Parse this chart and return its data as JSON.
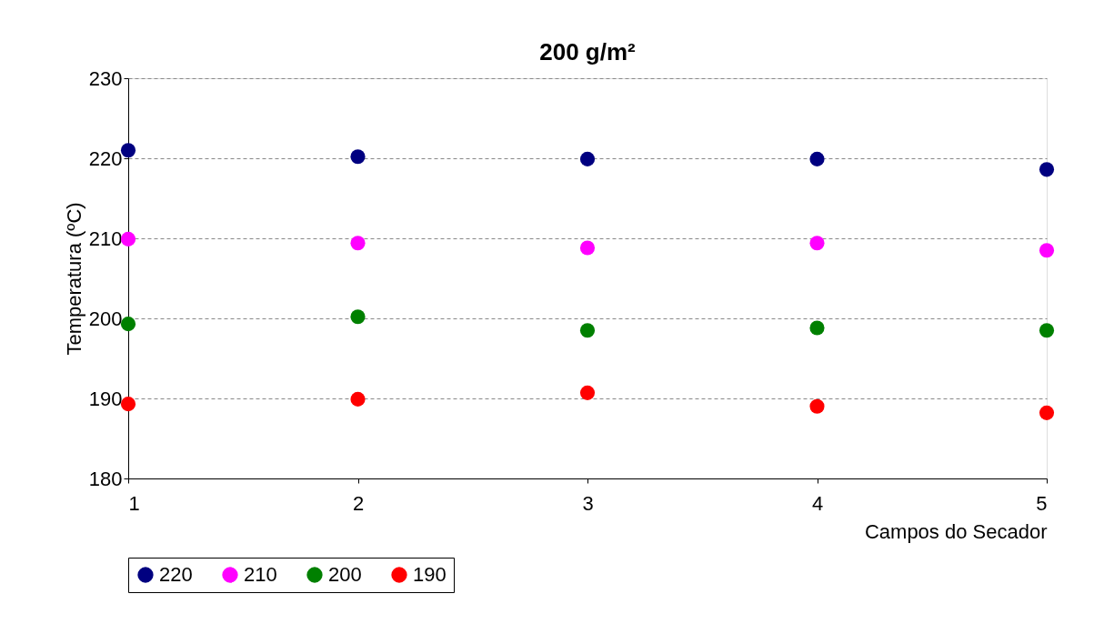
{
  "chart_data": {
    "type": "scatter",
    "title": "200 g/m²",
    "xlabel": "Campos do Secador",
    "ylabel": "Temperatura (ºC)",
    "x": [
      1,
      2,
      3,
      4,
      5
    ],
    "xlim": [
      1,
      5
    ],
    "xticks": [
      1,
      2,
      3,
      4,
      5
    ],
    "ylim": [
      180,
      230
    ],
    "yticks": [
      180,
      190,
      200,
      210,
      220,
      230
    ],
    "grid": "y",
    "legend": "bottom",
    "marker": "circle",
    "series": [
      {
        "name": "220",
        "color": "#000080",
        "values": [
          221.0,
          220.2,
          219.9,
          219.9,
          218.6
        ]
      },
      {
        "name": "210",
        "color": "#ff00ff",
        "values": [
          209.9,
          209.4,
          208.8,
          209.4,
          208.5
        ]
      },
      {
        "name": "200",
        "color": "#008000",
        "values": [
          199.3,
          200.2,
          198.5,
          198.8,
          198.5
        ]
      },
      {
        "name": "190",
        "color": "#ff0000",
        "values": [
          189.3,
          189.9,
          190.7,
          189.0,
          188.2
        ]
      }
    ]
  }
}
